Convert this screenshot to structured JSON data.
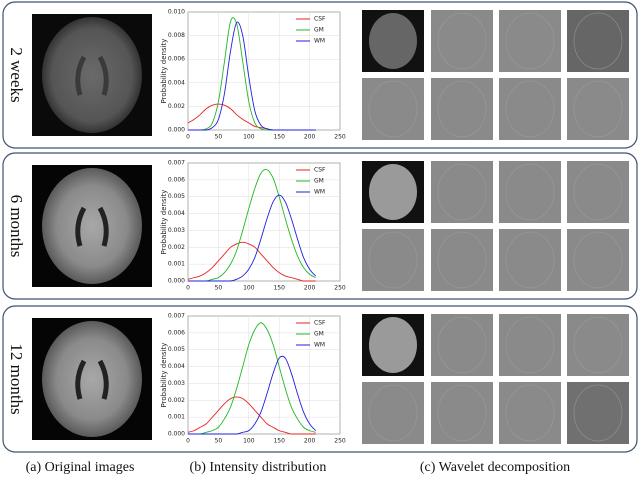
{
  "row_labels": [
    "2 weeks",
    "6 months",
    "12 months"
  ],
  "captions": [
    "(a) Original images",
    "(b) Intensity distribution",
    "(c) Wavelet decomposition"
  ],
  "chart_data": [
    {
      "type": "line",
      "ylabel": "Probability density",
      "x": [
        0,
        10,
        20,
        30,
        40,
        50,
        60,
        70,
        80,
        90,
        100,
        110,
        120,
        130,
        140,
        150,
        160,
        170,
        180,
        190,
        200,
        210
      ],
      "series": [
        {
          "name": "CSF",
          "color": "#e8231f",
          "values": [
            0.0006,
            0.0009,
            0.0013,
            0.0018,
            0.0021,
            0.0022,
            0.0021,
            0.0018,
            0.0013,
            0.0009,
            0.0006,
            0.0003,
            0.0002,
            0.0001,
            0,
            0,
            0,
            0,
            0,
            0,
            0,
            0
          ]
        },
        {
          "name": "GM",
          "color": "#22b822",
          "values": [
            0,
            0,
            0,
            0.0001,
            0.0006,
            0.0024,
            0.0058,
            0.0092,
            0.009,
            0.0058,
            0.0024,
            0.0006,
            0.0001,
            0,
            0,
            0,
            0,
            0,
            0,
            0,
            0,
            0
          ]
        },
        {
          "name": "WM",
          "color": "#1f1fe0",
          "values": [
            0,
            0,
            0,
            0,
            0.0002,
            0.0009,
            0.0031,
            0.0067,
            0.0091,
            0.008,
            0.0045,
            0.0016,
            0.0004,
            0.0001,
            0,
            0,
            0,
            0,
            0,
            0,
            0,
            0
          ]
        }
      ],
      "xlim": [
        0,
        250
      ],
      "xticks": [
        0,
        50,
        100,
        150,
        200,
        250
      ],
      "ylim": [
        0,
        0.01
      ],
      "yticks": [
        {
          "value": 0,
          "label": "0.000"
        },
        {
          "value": 0.002,
          "label": "0.002"
        },
        {
          "value": 0.004,
          "label": "0.004"
        },
        {
          "value": 0.006,
          "label": "0.006"
        },
        {
          "value": 0.008,
          "label": "0.008"
        },
        {
          "value": 0.01,
          "label": "0.010"
        }
      ],
      "grid": true,
      "legend": "upper right"
    },
    {
      "type": "line",
      "ylabel": "Probability density",
      "x": [
        0,
        10,
        20,
        30,
        40,
        50,
        60,
        70,
        80,
        90,
        100,
        110,
        120,
        130,
        140,
        150,
        160,
        170,
        180,
        190,
        200,
        210
      ],
      "series": [
        {
          "name": "CSF",
          "color": "#e8231f",
          "values": [
            0.0001,
            0.0002,
            0.0003,
            0.0005,
            0.0008,
            0.0012,
            0.0016,
            0.002,
            0.0022,
            0.0023,
            0.0022,
            0.002,
            0.0016,
            0.0012,
            0.0008,
            0.0005,
            0.0003,
            0.0002,
            0.0001,
            0,
            0,
            0
          ]
        },
        {
          "name": "GM",
          "color": "#22b822",
          "values": [
            0,
            0,
            0,
            0,
            0.0001,
            0.0002,
            0.0005,
            0.001,
            0.0018,
            0.003,
            0.0043,
            0.0055,
            0.0064,
            0.0066,
            0.0061,
            0.005,
            0.0037,
            0.0025,
            0.0015,
            0.0008,
            0.0004,
            0.0002
          ]
        },
        {
          "name": "WM",
          "color": "#1f1fe0",
          "values": [
            0,
            0,
            0,
            0,
            0,
            0,
            0,
            0,
            0.0001,
            0.0003,
            0.0007,
            0.0014,
            0.0025,
            0.0037,
            0.0047,
            0.0051,
            0.0047,
            0.0037,
            0.0025,
            0.0014,
            0.0007,
            0.0003
          ]
        }
      ],
      "xlim": [
        0,
        250
      ],
      "xticks": [
        0,
        50,
        100,
        150,
        200,
        250
      ],
      "ylim": [
        0,
        0.007
      ],
      "yticks": [
        {
          "value": 0,
          "label": "0.000"
        },
        {
          "value": 0.001,
          "label": "0.001"
        },
        {
          "value": 0.002,
          "label": "0.002"
        },
        {
          "value": 0.003,
          "label": "0.003"
        },
        {
          "value": 0.004,
          "label": "0.004"
        },
        {
          "value": 0.005,
          "label": "0.005"
        },
        {
          "value": 0.006,
          "label": "0.006"
        },
        {
          "value": 0.007,
          "label": "0.007"
        }
      ],
      "grid": true,
      "legend": "upper right"
    },
    {
      "type": "line",
      "ylabel": "Probability density",
      "x": [
        0,
        10,
        20,
        30,
        40,
        50,
        60,
        70,
        80,
        90,
        100,
        110,
        120,
        130,
        140,
        150,
        160,
        170,
        180,
        190,
        200,
        210
      ],
      "series": [
        {
          "name": "CSF",
          "color": "#e8231f",
          "values": [
            0.0001,
            0.0002,
            0.0004,
            0.0006,
            0.001,
            0.0014,
            0.0018,
            0.0021,
            0.0022,
            0.0021,
            0.0018,
            0.0014,
            0.001,
            0.0006,
            0.0004,
            0.0002,
            0.0001,
            0,
            0,
            0,
            0,
            0
          ]
        },
        {
          "name": "GM",
          "color": "#22b822",
          "values": [
            0,
            0,
            0,
            0.0001,
            0.0002,
            0.0004,
            0.0009,
            0.0016,
            0.0027,
            0.004,
            0.0053,
            0.0062,
            0.0066,
            0.0062,
            0.0053,
            0.004,
            0.0027,
            0.0016,
            0.0009,
            0.0004,
            0.0002,
            0.0001
          ]
        },
        {
          "name": "WM",
          "color": "#1f1fe0",
          "values": [
            0,
            0,
            0,
            0,
            0,
            0,
            0,
            0,
            0,
            0.0001,
            0.0002,
            0.0006,
            0.0013,
            0.0024,
            0.0036,
            0.0045,
            0.0045,
            0.0036,
            0.0024,
            0.0013,
            0.0006,
            0.0002
          ]
        }
      ],
      "xlim": [
        0,
        250
      ],
      "xticks": [
        0,
        50,
        100,
        150,
        200,
        250
      ],
      "ylim": [
        0,
        0.007
      ],
      "yticks": [
        {
          "value": 0,
          "label": "0.000"
        },
        {
          "value": 0.001,
          "label": "0.001"
        },
        {
          "value": 0.002,
          "label": "0.002"
        },
        {
          "value": 0.003,
          "label": "0.003"
        },
        {
          "value": 0.004,
          "label": "0.004"
        },
        {
          "value": 0.005,
          "label": "0.005"
        },
        {
          "value": 0.006,
          "label": "0.006"
        },
        {
          "value": 0.007,
          "label": "0.007"
        }
      ],
      "grid": true,
      "legend": "upper right"
    }
  ]
}
